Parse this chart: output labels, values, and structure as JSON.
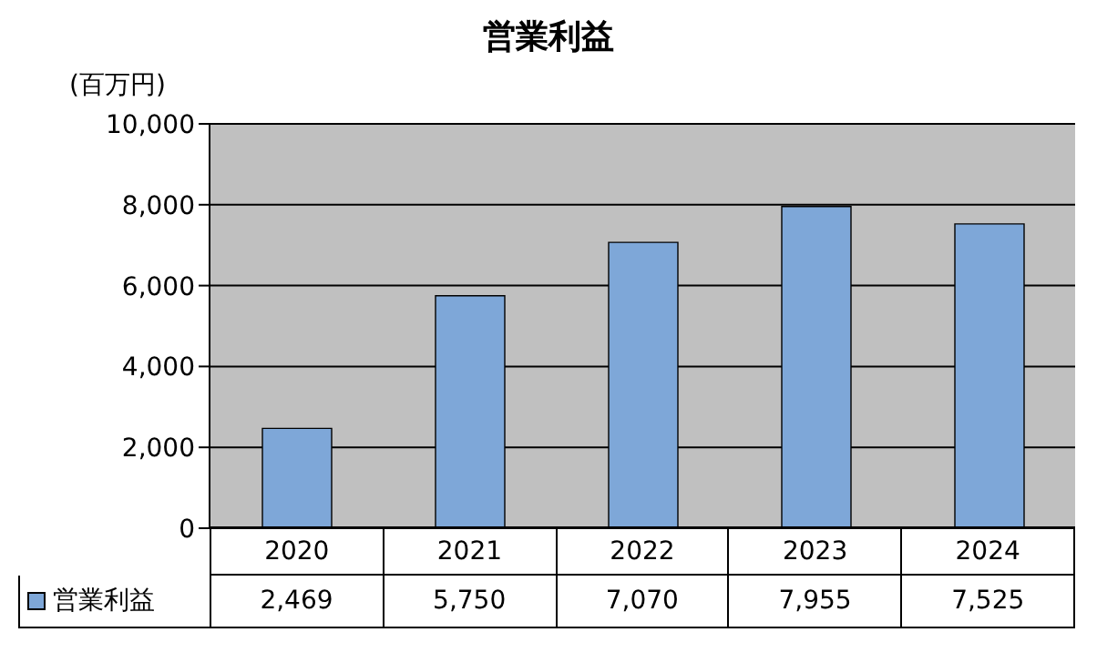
{
  "chart_data": {
    "type": "bar",
    "title": "営業利益",
    "ylabel": "(百万円)",
    "categories": [
      "2020",
      "2021",
      "2022",
      "2023",
      "2024"
    ],
    "series": [
      {
        "name": "営業利益",
        "color": "#7ea7d8",
        "values": [
          2469,
          5750,
          7070,
          7955,
          7525
        ],
        "value_labels": [
          "2,469",
          "5,750",
          "7,070",
          "7,955",
          "7,525"
        ]
      }
    ],
    "ylim": [
      0,
      10000
    ],
    "yticks": [
      {
        "value": 0,
        "label": "0"
      },
      {
        "value": 2000,
        "label": "2,000"
      },
      {
        "value": 4000,
        "label": "4,000"
      },
      {
        "value": 6000,
        "label": "6,000"
      },
      {
        "value": 8000,
        "label": "8,000"
      },
      {
        "value": 10000,
        "label": "10,000"
      }
    ],
    "grid": "y",
    "legend": "bottom"
  }
}
